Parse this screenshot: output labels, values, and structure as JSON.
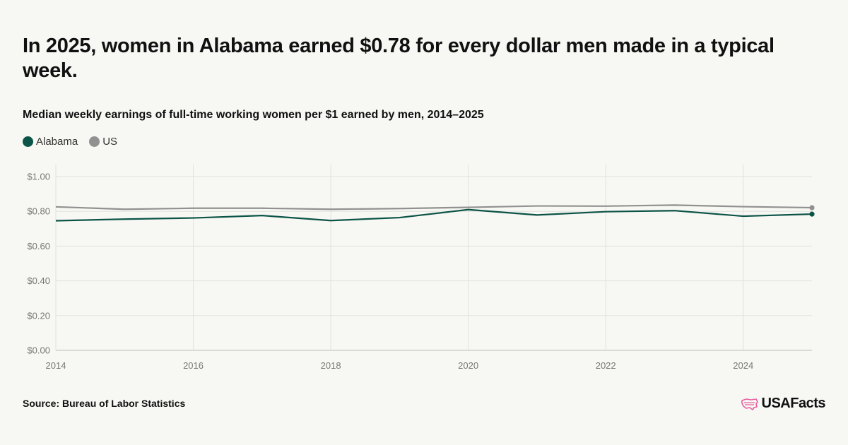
{
  "title": "In 2025, women in Alabama earned $0.78 for every dollar men made in a typical week.",
  "subtitle": "Median weekly earnings of full-time working women per $1 earned by men, 2014–2025",
  "source": "Source: Bureau of Labor Statistics",
  "logo": {
    "text": "USAFacts",
    "icon": "us-map-icon",
    "color": "#e85fa0"
  },
  "chart_data": {
    "type": "line",
    "x": [
      2014,
      2015,
      2016,
      2017,
      2018,
      2019,
      2020,
      2021,
      2022,
      2023,
      2024,
      2025
    ],
    "series": [
      {
        "name": "US",
        "color": "#919191",
        "values": [
          0.826,
          0.812,
          0.818,
          0.818,
          0.812,
          0.816,
          0.823,
          0.831,
          0.83,
          0.836,
          0.827,
          0.821
        ]
      },
      {
        "name": "Alabama",
        "color": "#0b5447",
        "values": [
          0.746,
          0.755,
          0.762,
          0.776,
          0.747,
          0.764,
          0.81,
          0.779,
          0.798,
          0.804,
          0.772,
          0.784
        ]
      }
    ],
    "legend": [
      {
        "name": "Alabama",
        "color": "#0b5447"
      },
      {
        "name": "US",
        "color": "#919191"
      }
    ],
    "x_ticks": [
      2014,
      2016,
      2018,
      2020,
      2022,
      2024
    ],
    "y_ticks": [
      {
        "value": 0,
        "label": "$0.00"
      },
      {
        "value": 0.2,
        "label": "$0.20"
      },
      {
        "value": 0.4,
        "label": "$0.40"
      },
      {
        "value": 0.6,
        "label": "$0.60"
      },
      {
        "value": 0.8,
        "label": "$0.80"
      },
      {
        "value": 1.0,
        "label": "$1.00"
      }
    ],
    "xlim": [
      2014,
      2025
    ],
    "ylim": [
      0,
      1.0
    ],
    "grid": true,
    "legend_position": "top-left"
  }
}
